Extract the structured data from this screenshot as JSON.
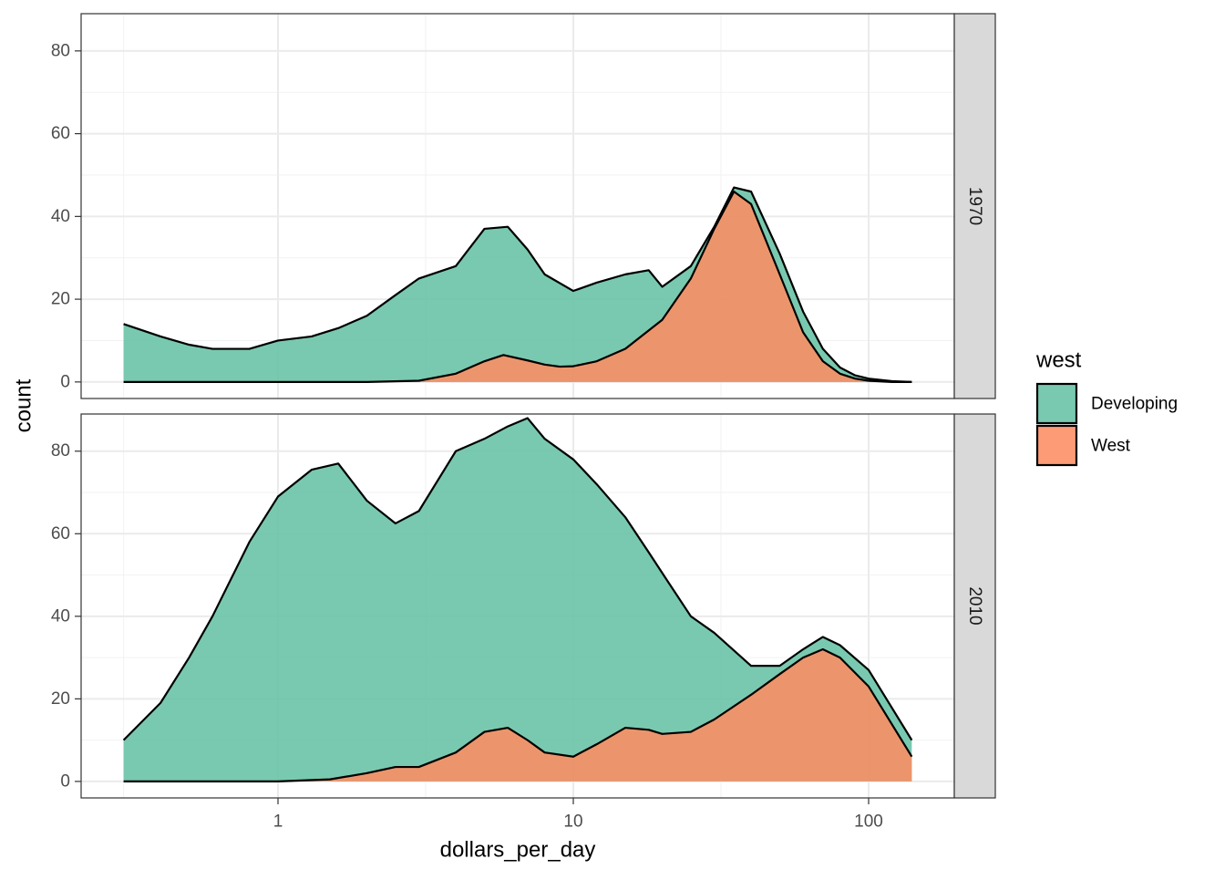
{
  "chart_data": {
    "type": "area",
    "subtype": "stacked density (count) faceted by year",
    "xlabel": "dollars_per_day",
    "ylabel": "count",
    "x_scale": "log10",
    "xlim": [
      0.17,
      200
    ],
    "x_ticks": [
      1,
      10,
      100
    ],
    "x_tick_labels": [
      "1",
      "10",
      "100"
    ],
    "ylim": [
      -4,
      89
    ],
    "y_ticks": [
      0,
      20,
      40,
      60,
      80
    ],
    "y_tick_labels": [
      "0",
      "20",
      "40",
      "60",
      "80"
    ],
    "grid": true,
    "legend": {
      "title": "west",
      "position": "right",
      "entries": [
        {
          "label": "Developing",
          "color": "#66c2a5"
        },
        {
          "label": "West",
          "color": "#fc8d62"
        }
      ]
    },
    "facets": [
      {
        "label": "1970",
        "series": [
          {
            "name": "West",
            "color": "#fc8d62",
            "x": [
              0.3,
              1,
              2,
              3,
              4,
              5,
              5.8,
              7,
              8,
              9,
              10,
              12,
              15,
              20,
              25,
              30,
              35,
              40,
              50,
              60,
              70,
              80,
              90,
              100,
              120,
              140
            ],
            "y": [
              0,
              0,
              0,
              0.3,
              2,
              5,
              6.5,
              5.2,
              4.2,
              3.7,
              3.8,
              5,
              8,
              15,
              25,
              37,
              46,
              43,
              26,
              12,
              5,
              2,
              0.8,
              0.3,
              0,
              0
            ]
          },
          {
            "name": "Developing",
            "color": "#66c2a5",
            "x": [
              0.3,
              0.4,
              0.5,
              0.6,
              0.8,
              1,
              1.3,
              1.6,
              2,
              2.5,
              3,
              4,
              5,
              6,
              7,
              8,
              10,
              12,
              15,
              18,
              20,
              25,
              30,
              35,
              40,
              50,
              60,
              70,
              80,
              90,
              100,
              120,
              140
            ],
            "y": [
              14,
              11,
              9,
              8,
              8,
              10,
              11,
              13,
              16,
              21,
              25,
              28,
              32,
              31,
              27,
              22,
              18,
              19,
              18,
              12,
              8,
              3,
              0.5,
              1,
              3,
              5,
              5,
              3,
              1.5,
              0.8,
              0.5,
              0.2,
              0
            ],
            "stack_top": [
              14,
              11,
              9,
              8,
              8,
              10,
              11,
              13,
              16,
              21,
              25,
              28,
              37,
              37.5,
              32,
              26,
              22,
              24,
              26,
              27,
              23,
              28,
              37.5,
              47,
              46,
              31,
              17,
              8,
              3.5,
              1.6,
              0.8,
              0.2,
              0
            ]
          }
        ]
      },
      {
        "label": "2010",
        "series": [
          {
            "name": "West",
            "color": "#fc8d62",
            "x": [
              0.3,
              1,
              1.5,
              2,
              2.5,
              3,
              4,
              5,
              6,
              7,
              8,
              10,
              12,
              15,
              18,
              20,
              25,
              30,
              40,
              50,
              60,
              70,
              80,
              100,
              140
            ],
            "y": [
              0,
              0,
              0.5,
              2,
              3.5,
              3.5,
              7,
              12,
              13,
              10,
              7,
              6,
              9,
              13,
              12.5,
              11.5,
              12,
              15,
              21,
              26,
              30,
              32,
              30,
              23,
              6
            ]
          },
          {
            "name": "Developing",
            "color": "#66c2a5",
            "x": [
              0.3,
              0.4,
              0.5,
              0.6,
              0.8,
              1,
              1.3,
              1.6,
              2,
              2.5,
              3,
              4,
              5,
              6,
              7,
              8,
              10,
              12,
              15,
              18,
              20,
              25,
              30,
              40,
              50,
              60,
              70,
              80,
              100,
              140
            ],
            "y": [
              10,
              19,
              30,
              40,
              58,
              69,
              75,
              75,
              66,
              59,
              62,
              73,
              71,
              73,
              78,
              76,
              72,
              63,
              51,
              43,
              39,
              28,
              21,
              7,
              2,
              2,
              3,
              3,
              4,
              4
            ],
            "stack_top": [
              10,
              19,
              30,
              40,
              58,
              69,
              75.5,
              77,
              68,
              62.5,
              65.5,
              80,
              83,
              86,
              88,
              83,
              78,
              72,
              64,
              55.5,
              50.5,
              40,
              36,
              28,
              28,
              32,
              35,
              33,
              27,
              10
            ]
          }
        ]
      }
    ]
  }
}
